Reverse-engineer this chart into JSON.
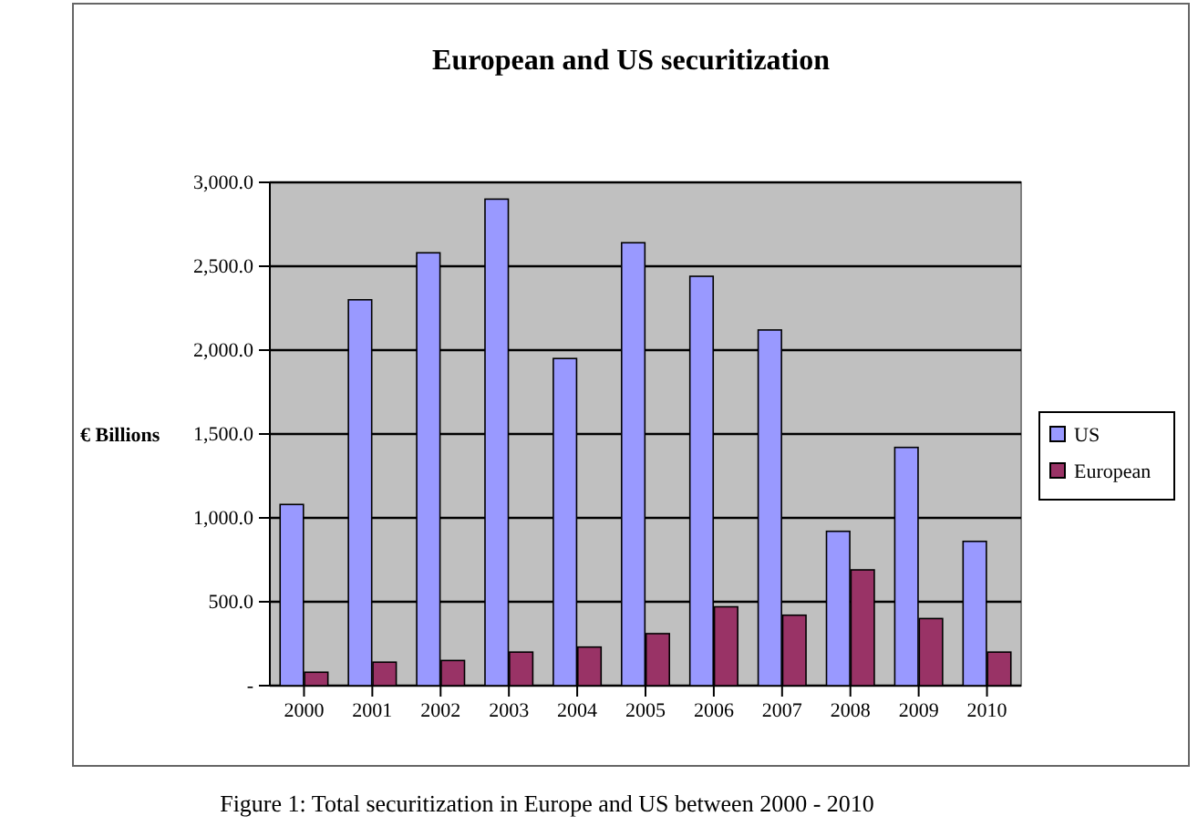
{
  "chart_data": {
    "type": "bar",
    "title": "European and US securitization",
    "ylabel": "€ Billions",
    "categories": [
      "2000",
      "2001",
      "2002",
      "2003",
      "2004",
      "2005",
      "2006",
      "2007",
      "2008",
      "2009",
      "2010"
    ],
    "series": [
      {
        "name": "US",
        "color": "#9999ff",
        "values": [
          1080,
          2300,
          2580,
          2900,
          1950,
          2640,
          2440,
          2120,
          920,
          1420,
          860
        ]
      },
      {
        "name": "European",
        "color": "#993366",
        "values": [
          80,
          140,
          150,
          200,
          230,
          310,
          470,
          420,
          690,
          400,
          200
        ]
      }
    ],
    "ylim": [
      0,
      3000
    ],
    "yticks": [
      {
        "value": 0,
        "label": "-"
      },
      {
        "value": 500,
        "label": "500.0"
      },
      {
        "value": 1000,
        "label": "1,000.0"
      },
      {
        "value": 1500,
        "label": "1,500.0"
      },
      {
        "value": 2000,
        "label": "2,000.0"
      },
      {
        "value": 2500,
        "label": "2,500.0"
      },
      {
        "value": 3000,
        "label": "3,000.0"
      }
    ],
    "grid": "y",
    "legend": "right",
    "annotations": [
      "Figure 1: Total securitization in Europe and US between 2000 - 2010"
    ]
  }
}
